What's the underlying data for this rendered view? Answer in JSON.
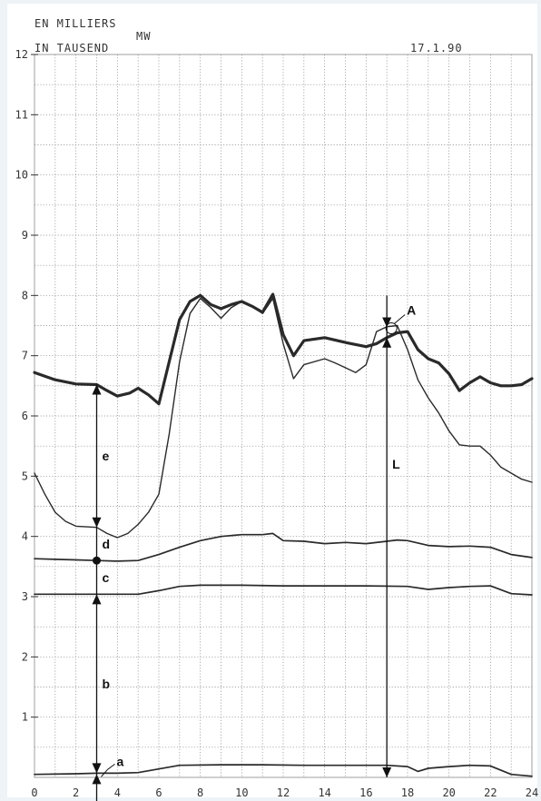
{
  "header": {
    "line1": "EN MILLIERS",
    "line2": "IN TAUSEND",
    "unit": "MW",
    "date": "17.1.90"
  },
  "chart_data": {
    "type": "line",
    "xlim": [
      0,
      24
    ],
    "ylim": [
      0,
      12
    ],
    "x_ticks": [
      "0",
      "2",
      "4",
      "6",
      "8",
      "10",
      "12",
      "14",
      "16",
      "18",
      "20",
      "22",
      "24"
    ],
    "y_ticks": [
      "1",
      "2",
      "3",
      "4",
      "5",
      "6",
      "7",
      "8",
      "9",
      "10",
      "11",
      "12"
    ],
    "grid": true,
    "series": [
      {
        "values": [
          [
            0,
            6.72
          ],
          [
            1,
            6.6
          ],
          [
            2,
            6.53
          ],
          [
            3,
            6.52
          ],
          [
            3.5,
            6.42
          ],
          [
            4,
            6.33
          ],
          [
            4.6,
            6.38
          ],
          [
            5,
            6.46
          ],
          [
            5.5,
            6.35
          ],
          [
            6,
            6.2
          ],
          [
            6.5,
            6.9
          ],
          [
            7,
            7.6
          ],
          [
            7.5,
            7.9
          ],
          [
            8,
            8.0
          ],
          [
            8.5,
            7.85
          ],
          [
            9,
            7.78
          ],
          [
            9.5,
            7.85
          ],
          [
            10,
            7.9
          ],
          [
            10.5,
            7.82
          ],
          [
            11,
            7.72
          ],
          [
            11.5,
            8.02
          ],
          [
            12,
            7.35
          ],
          [
            12.5,
            7.0
          ],
          [
            13,
            7.25
          ],
          [
            14,
            7.3
          ],
          [
            15,
            7.22
          ],
          [
            16,
            7.15
          ],
          [
            16.5,
            7.2
          ],
          [
            17,
            7.3
          ],
          [
            17.5,
            7.38
          ],
          [
            18,
            7.4
          ],
          [
            18.5,
            7.1
          ],
          [
            19,
            6.95
          ],
          [
            19.5,
            6.88
          ],
          [
            20,
            6.7
          ],
          [
            20.5,
            6.42
          ],
          [
            21,
            6.55
          ],
          [
            21.5,
            6.65
          ],
          [
            22,
            6.55
          ],
          [
            22.5,
            6.5
          ],
          [
            23,
            6.5
          ],
          [
            23.5,
            6.52
          ],
          [
            24,
            6.62
          ]
        ]
      },
      {
        "values": [
          [
            0,
            5.05
          ],
          [
            0.5,
            4.7
          ],
          [
            1,
            4.4
          ],
          [
            1.5,
            4.25
          ],
          [
            2,
            4.17
          ],
          [
            3,
            4.15
          ],
          [
            3.5,
            4.05
          ],
          [
            4,
            3.98
          ],
          [
            4.5,
            4.05
          ],
          [
            5,
            4.2
          ],
          [
            5.5,
            4.4
          ],
          [
            6,
            4.7
          ],
          [
            6.5,
            5.7
          ],
          [
            7,
            6.9
          ],
          [
            7.5,
            7.7
          ],
          [
            8,
            7.95
          ],
          [
            8.5,
            7.8
          ],
          [
            9,
            7.62
          ],
          [
            9.5,
            7.8
          ],
          [
            10,
            7.9
          ],
          [
            10.5,
            7.82
          ],
          [
            11,
            7.7
          ],
          [
            11.5,
            7.95
          ],
          [
            12,
            7.2
          ],
          [
            12.5,
            6.62
          ],
          [
            13,
            6.85
          ],
          [
            14,
            6.95
          ],
          [
            14.5,
            6.88
          ],
          [
            15,
            6.8
          ],
          [
            15.5,
            6.72
          ],
          [
            16,
            6.85
          ],
          [
            16.5,
            7.4
          ],
          [
            17,
            7.48
          ],
          [
            17.5,
            7.5
          ],
          [
            18,
            7.1
          ],
          [
            18.5,
            6.6
          ],
          [
            19,
            6.3
          ],
          [
            19.5,
            6.05
          ],
          [
            20,
            5.75
          ],
          [
            20.5,
            5.52
          ],
          [
            21,
            5.5
          ],
          [
            21.5,
            5.5
          ],
          [
            22,
            5.35
          ],
          [
            22.5,
            5.15
          ],
          [
            23,
            5.05
          ],
          [
            23.5,
            4.95
          ],
          [
            24,
            4.9
          ]
        ]
      },
      {
        "values": [
          [
            0,
            3.63
          ],
          [
            1,
            3.62
          ],
          [
            2,
            3.61
          ],
          [
            3,
            3.6
          ],
          [
            4,
            3.59
          ],
          [
            5,
            3.6
          ],
          [
            6,
            3.7
          ],
          [
            7,
            3.82
          ],
          [
            8,
            3.93
          ],
          [
            9,
            4.0
          ],
          [
            10,
            4.03
          ],
          [
            11,
            4.03
          ],
          [
            11.5,
            4.05
          ],
          [
            12,
            3.93
          ],
          [
            13,
            3.92
          ],
          [
            14,
            3.88
          ],
          [
            15,
            3.9
          ],
          [
            16,
            3.88
          ],
          [
            17,
            3.92
          ],
          [
            17.5,
            3.94
          ],
          [
            18,
            3.93
          ],
          [
            19,
            3.85
          ],
          [
            20,
            3.83
          ],
          [
            21,
            3.84
          ],
          [
            22,
            3.82
          ],
          [
            23,
            3.7
          ],
          [
            24,
            3.65
          ]
        ]
      },
      {
        "values": [
          [
            0,
            3.04
          ],
          [
            2,
            3.04
          ],
          [
            4,
            3.04
          ],
          [
            5,
            3.04
          ],
          [
            6,
            3.1
          ],
          [
            7,
            3.17
          ],
          [
            8,
            3.19
          ],
          [
            10,
            3.19
          ],
          [
            12,
            3.18
          ],
          [
            14,
            3.18
          ],
          [
            16,
            3.18
          ],
          [
            18,
            3.17
          ],
          [
            19,
            3.12
          ],
          [
            20,
            3.15
          ],
          [
            21,
            3.17
          ],
          [
            22,
            3.18
          ],
          [
            23,
            3.05
          ],
          [
            24,
            3.03
          ]
        ]
      },
      {
        "values": [
          [
            0,
            0.05
          ],
          [
            2,
            0.06
          ],
          [
            3,
            0.07
          ],
          [
            4,
            0.07
          ],
          [
            5,
            0.08
          ],
          [
            6,
            0.14
          ],
          [
            7,
            0.2
          ],
          [
            9,
            0.21
          ],
          [
            11,
            0.21
          ],
          [
            13,
            0.2
          ],
          [
            15,
            0.2
          ],
          [
            17,
            0.2
          ],
          [
            18,
            0.18
          ],
          [
            18.5,
            0.1
          ],
          [
            19,
            0.15
          ],
          [
            20,
            0.18
          ],
          [
            21,
            0.2
          ],
          [
            22,
            0.19
          ],
          [
            23,
            0.05
          ],
          [
            24,
            0.02
          ]
        ]
      }
    ],
    "annotations": [
      {
        "label": "a",
        "x": 3.0,
        "y_from": 0.07,
        "y_to": 0.07
      },
      {
        "label": "b",
        "x": 3.0,
        "y_from": 0.07,
        "y_to": 3.04
      },
      {
        "label": "c",
        "x": 3.0,
        "y_from": 3.04,
        "y_to": 3.6
      },
      {
        "label": "d",
        "x": 3.0,
        "y_from": 3.6,
        "y_to": 4.15
      },
      {
        "label": "e",
        "x": 3.0,
        "y_from": 4.15,
        "y_to": 6.52
      },
      {
        "label": "L",
        "x": 17.0,
        "y_from": 0.0,
        "y_to": 7.3
      },
      {
        "label": "A",
        "x": 17.0,
        "y_from": 7.5,
        "y_to": 7.5
      }
    ]
  },
  "colors": {
    "line": "#2a2a2a",
    "background": "#eef3f7",
    "paper": "#ffffff",
    "grid": "#888888"
  }
}
